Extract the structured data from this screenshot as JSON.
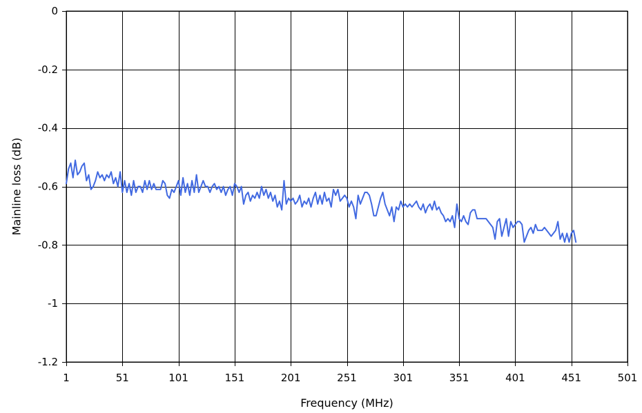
{
  "chart_data": {
    "type": "line",
    "title": "",
    "xlabel": "Frequency (MHz)",
    "ylabel": "Mainline loss (dB)",
    "xlim": [
      1,
      501
    ],
    "ylim": [
      -1.2,
      0
    ],
    "x_ticks": [
      1,
      51,
      101,
      151,
      201,
      251,
      301,
      351,
      401,
      451,
      501
    ],
    "y_ticks": [
      0,
      -0.2,
      -0.4,
      -0.6,
      -0.8,
      -1,
      -1.2
    ],
    "y_tick_labels": [
      "0",
      "-0.2",
      "-0.4",
      "-0.6",
      "-0.8",
      "-1",
      "-1.2"
    ],
    "grid": true,
    "legend": "none",
    "series": [
      {
        "color": "#4169e1",
        "x_start": 1,
        "x_step": 2,
        "values": [
          -0.59,
          -0.54,
          -0.52,
          -0.57,
          -0.51,
          -0.56,
          -0.55,
          -0.53,
          -0.52,
          -0.58,
          -0.56,
          -0.61,
          -0.6,
          -0.58,
          -0.55,
          -0.57,
          -0.56,
          -0.58,
          -0.56,
          -0.57,
          -0.55,
          -0.59,
          -0.57,
          -0.6,
          -0.55,
          -0.62,
          -0.58,
          -0.62,
          -0.59,
          -0.63,
          -0.58,
          -0.62,
          -0.6,
          -0.6,
          -0.62,
          -0.58,
          -0.61,
          -0.58,
          -0.61,
          -0.59,
          -0.61,
          -0.61,
          -0.61,
          -0.58,
          -0.59,
          -0.63,
          -0.64,
          -0.61,
          -0.62,
          -0.6,
          -0.58,
          -0.63,
          -0.57,
          -0.62,
          -0.59,
          -0.63,
          -0.58,
          -0.62,
          -0.56,
          -0.62,
          -0.6,
          -0.58,
          -0.6,
          -0.6,
          -0.62,
          -0.6,
          -0.59,
          -0.61,
          -0.6,
          -0.62,
          -0.6,
          -0.63,
          -0.61,
          -0.6,
          -0.63,
          -0.59,
          -0.6,
          -0.62,
          -0.6,
          -0.66,
          -0.63,
          -0.62,
          -0.65,
          -0.63,
          -0.64,
          -0.62,
          -0.64,
          -0.6,
          -0.63,
          -0.61,
          -0.64,
          -0.62,
          -0.65,
          -0.63,
          -0.67,
          -0.65,
          -0.68,
          -0.58,
          -0.66,
          -0.64,
          -0.65,
          -0.64,
          -0.66,
          -0.65,
          -0.63,
          -0.67,
          -0.65,
          -0.66,
          -0.64,
          -0.67,
          -0.64,
          -0.62,
          -0.66,
          -0.63,
          -0.66,
          -0.62,
          -0.65,
          -0.64,
          -0.67,
          -0.61,
          -0.63,
          -0.61,
          -0.65,
          -0.64,
          -0.63,
          -0.64,
          -0.67,
          -0.65,
          -0.67,
          -0.71,
          -0.63,
          -0.66,
          -0.64,
          -0.62,
          -0.62,
          -0.63,
          -0.66,
          -0.7,
          -0.7,
          -0.67,
          -0.64,
          -0.62,
          -0.66,
          -0.68,
          -0.7,
          -0.67,
          -0.72,
          -0.67,
          -0.68,
          -0.65,
          -0.67,
          -0.66,
          -0.67,
          -0.66,
          -0.67,
          -0.66,
          -0.65,
          -0.67,
          -0.68,
          -0.66,
          -0.69,
          -0.67,
          -0.66,
          -0.68,
          -0.65,
          -0.68,
          -0.67,
          -0.69,
          -0.7,
          -0.72,
          -0.71,
          -0.72,
          -0.7,
          -0.74,
          -0.66,
          -0.71,
          -0.72,
          -0.7,
          -0.72,
          -0.73,
          -0.69,
          -0.68,
          -0.68,
          -0.71,
          -0.71,
          -0.71,
          -0.71,
          -0.71,
          -0.72,
          -0.73,
          -0.74,
          -0.78,
          -0.72,
          -0.71,
          -0.77,
          -0.74,
          -0.71,
          -0.77,
          -0.72,
          -0.74,
          -0.73,
          -0.72,
          -0.72,
          -0.73,
          -0.79,
          -0.77,
          -0.75,
          -0.74,
          -0.76,
          -0.73,
          -0.75,
          -0.75,
          -0.75,
          -0.74,
          -0.75,
          -0.76,
          -0.77,
          -0.76,
          -0.75,
          -0.72,
          -0.78,
          -0.76,
          -0.79,
          -0.76,
          -0.79,
          -0.76,
          -0.75,
          -0.79
        ]
      }
    ]
  }
}
